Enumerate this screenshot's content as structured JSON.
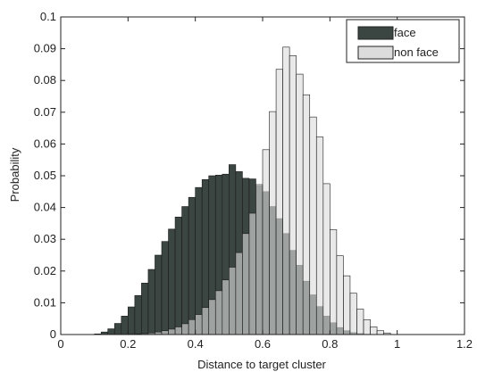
{
  "chart_data": {
    "type": "bar",
    "subtype": "overlapping-histogram",
    "title": "",
    "xlabel": "Distance to target cluster",
    "ylabel": "Probability",
    "xlim": [
      0,
      1.2
    ],
    "ylim": [
      0,
      0.1
    ],
    "xticks": [
      "0",
      "0.2",
      "0.4",
      "0.6",
      "0.8",
      "1",
      "1.2"
    ],
    "yticks": [
      "0",
      "0.01",
      "0.02",
      "0.03",
      "0.04",
      "0.05",
      "0.06",
      "0.07",
      "0.08",
      "0.09",
      "0.1"
    ],
    "grid": false,
    "legend_position": "top-right",
    "bin_width": 0.02,
    "x": [
      0.11,
      0.13,
      0.15,
      0.17,
      0.19,
      0.21,
      0.23,
      0.25,
      0.27,
      0.29,
      0.31,
      0.33,
      0.35,
      0.37,
      0.39,
      0.41,
      0.43,
      0.45,
      0.47,
      0.49,
      0.51,
      0.53,
      0.55,
      0.57,
      0.59,
      0.61,
      0.63,
      0.65,
      0.67,
      0.69,
      0.71,
      0.73,
      0.75,
      0.77,
      0.79,
      0.81,
      0.83,
      0.85,
      0.87,
      0.89,
      0.91,
      0.93,
      0.95,
      0.97
    ],
    "series": [
      {
        "name": "face",
        "color": "#3b4541",
        "values": [
          0.0002,
          0.0008,
          0.0018,
          0.0035,
          0.0058,
          0.0087,
          0.0123,
          0.0162,
          0.0205,
          0.025,
          0.0293,
          0.0332,
          0.037,
          0.0403,
          0.0432,
          0.0463,
          0.0488,
          0.05,
          0.0502,
          0.0505,
          0.0535,
          0.0513,
          0.0492,
          0.049,
          0.0468,
          0.045,
          0.0403,
          0.0365,
          0.0318,
          0.0265,
          0.0218,
          0.0168,
          0.0125,
          0.0088,
          0.0058,
          0.0037,
          0.0022,
          0.0012,
          0.0006,
          0.0003,
          0.0001,
          0,
          0,
          0
        ]
      },
      {
        "name": "non face",
        "color": "#dcdcdc",
        "values": [
          0,
          0,
          0,
          0,
          0,
          0.0001,
          0.0002,
          0.0003,
          0.0005,
          0.0008,
          0.0012,
          0.0017,
          0.0024,
          0.0034,
          0.0047,
          0.0063,
          0.0085,
          0.011,
          0.0138,
          0.0172,
          0.0212,
          0.0258,
          0.0318,
          0.0382,
          0.0472,
          0.0582,
          0.0702,
          0.0835,
          0.0905,
          0.0878,
          0.082,
          0.0755,
          0.0685,
          0.0622,
          0.0475,
          0.033,
          0.0248,
          0.0185,
          0.013,
          0.008,
          0.0047,
          0.0024,
          0.0012,
          0.0005
        ]
      }
    ]
  }
}
